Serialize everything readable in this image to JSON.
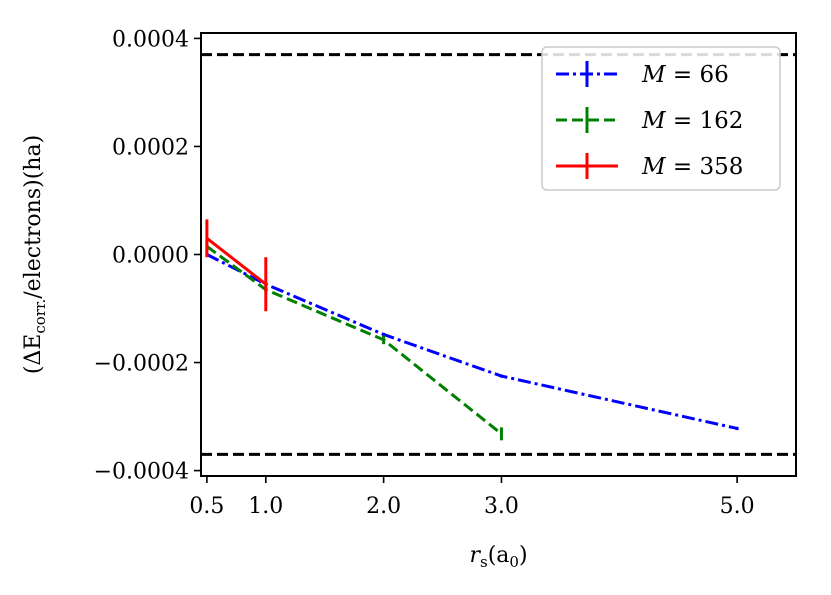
{
  "chart_data": {
    "type": "line",
    "xlabel": "r_s(a_0)",
    "xlabel_main": "r",
    "xlabel_sub": "s",
    "xlabel_rest": "(a",
    "xlabel_rest_sub": "0",
    "xlabel_close": ")",
    "ylabel": "(ΔE_corr./electrons)(ha)",
    "ylabel_parts": {
      "open": "(ΔE",
      "sub": "corr.",
      "rest": "/electrons)(ha)"
    },
    "xlim": [
      0.45,
      5.5
    ],
    "ylim": [
      -0.00041,
      0.00041
    ],
    "xticks": [
      0.5,
      1.0,
      2.0,
      3.0,
      5.0
    ],
    "xtick_labels": [
      "0.5",
      "1.0",
      "2.0",
      "3.0",
      "5.0"
    ],
    "yticks": [
      0.0004,
      0.0002,
      0.0,
      -0.0002,
      -0.0004
    ],
    "ytick_labels": [
      "0.0004",
      "0.0002",
      "0.0000",
      "−0.0002",
      "−0.0004"
    ],
    "hlines": [
      0.00037,
      -0.00037
    ],
    "hline_color": "#000000",
    "grid": false,
    "legend_position": "top-right",
    "series": [
      {
        "name": "M = 66",
        "legend_symbol": "M",
        "legend_value": "= 66",
        "color": "#0000ff",
        "linestyle": "dashdot",
        "x": [
          0.5,
          1.0,
          2.0,
          3.0,
          5.0
        ],
        "y": [
          0.0,
          -5.5e-05,
          -0.000148,
          -0.000225,
          -0.000322
        ],
        "yerr": [
          3e-06,
          3e-06,
          3e-06,
          3e-06,
          3e-06
        ]
      },
      {
        "name": "M = 162",
        "legend_symbol": "M",
        "legend_value": "= 162",
        "color": "#008000",
        "linestyle": "dashed",
        "x": [
          0.5,
          1.0,
          2.0,
          3.0
        ],
        "y": [
          1.5e-05,
          -6.5e-05,
          -0.000158,
          -0.000332
        ],
        "yerr": [
          8e-06,
          5e-06,
          8e-06,
          1.2e-05
        ]
      },
      {
        "name": "M = 358",
        "legend_symbol": "M",
        "legend_value": "= 358",
        "color": "#ff0000",
        "linestyle": "solid",
        "x": [
          0.5,
          1.0
        ],
        "y": [
          3e-05,
          -5.5e-05
        ],
        "yerr": [
          3.5e-05,
          5e-05
        ]
      }
    ]
  }
}
